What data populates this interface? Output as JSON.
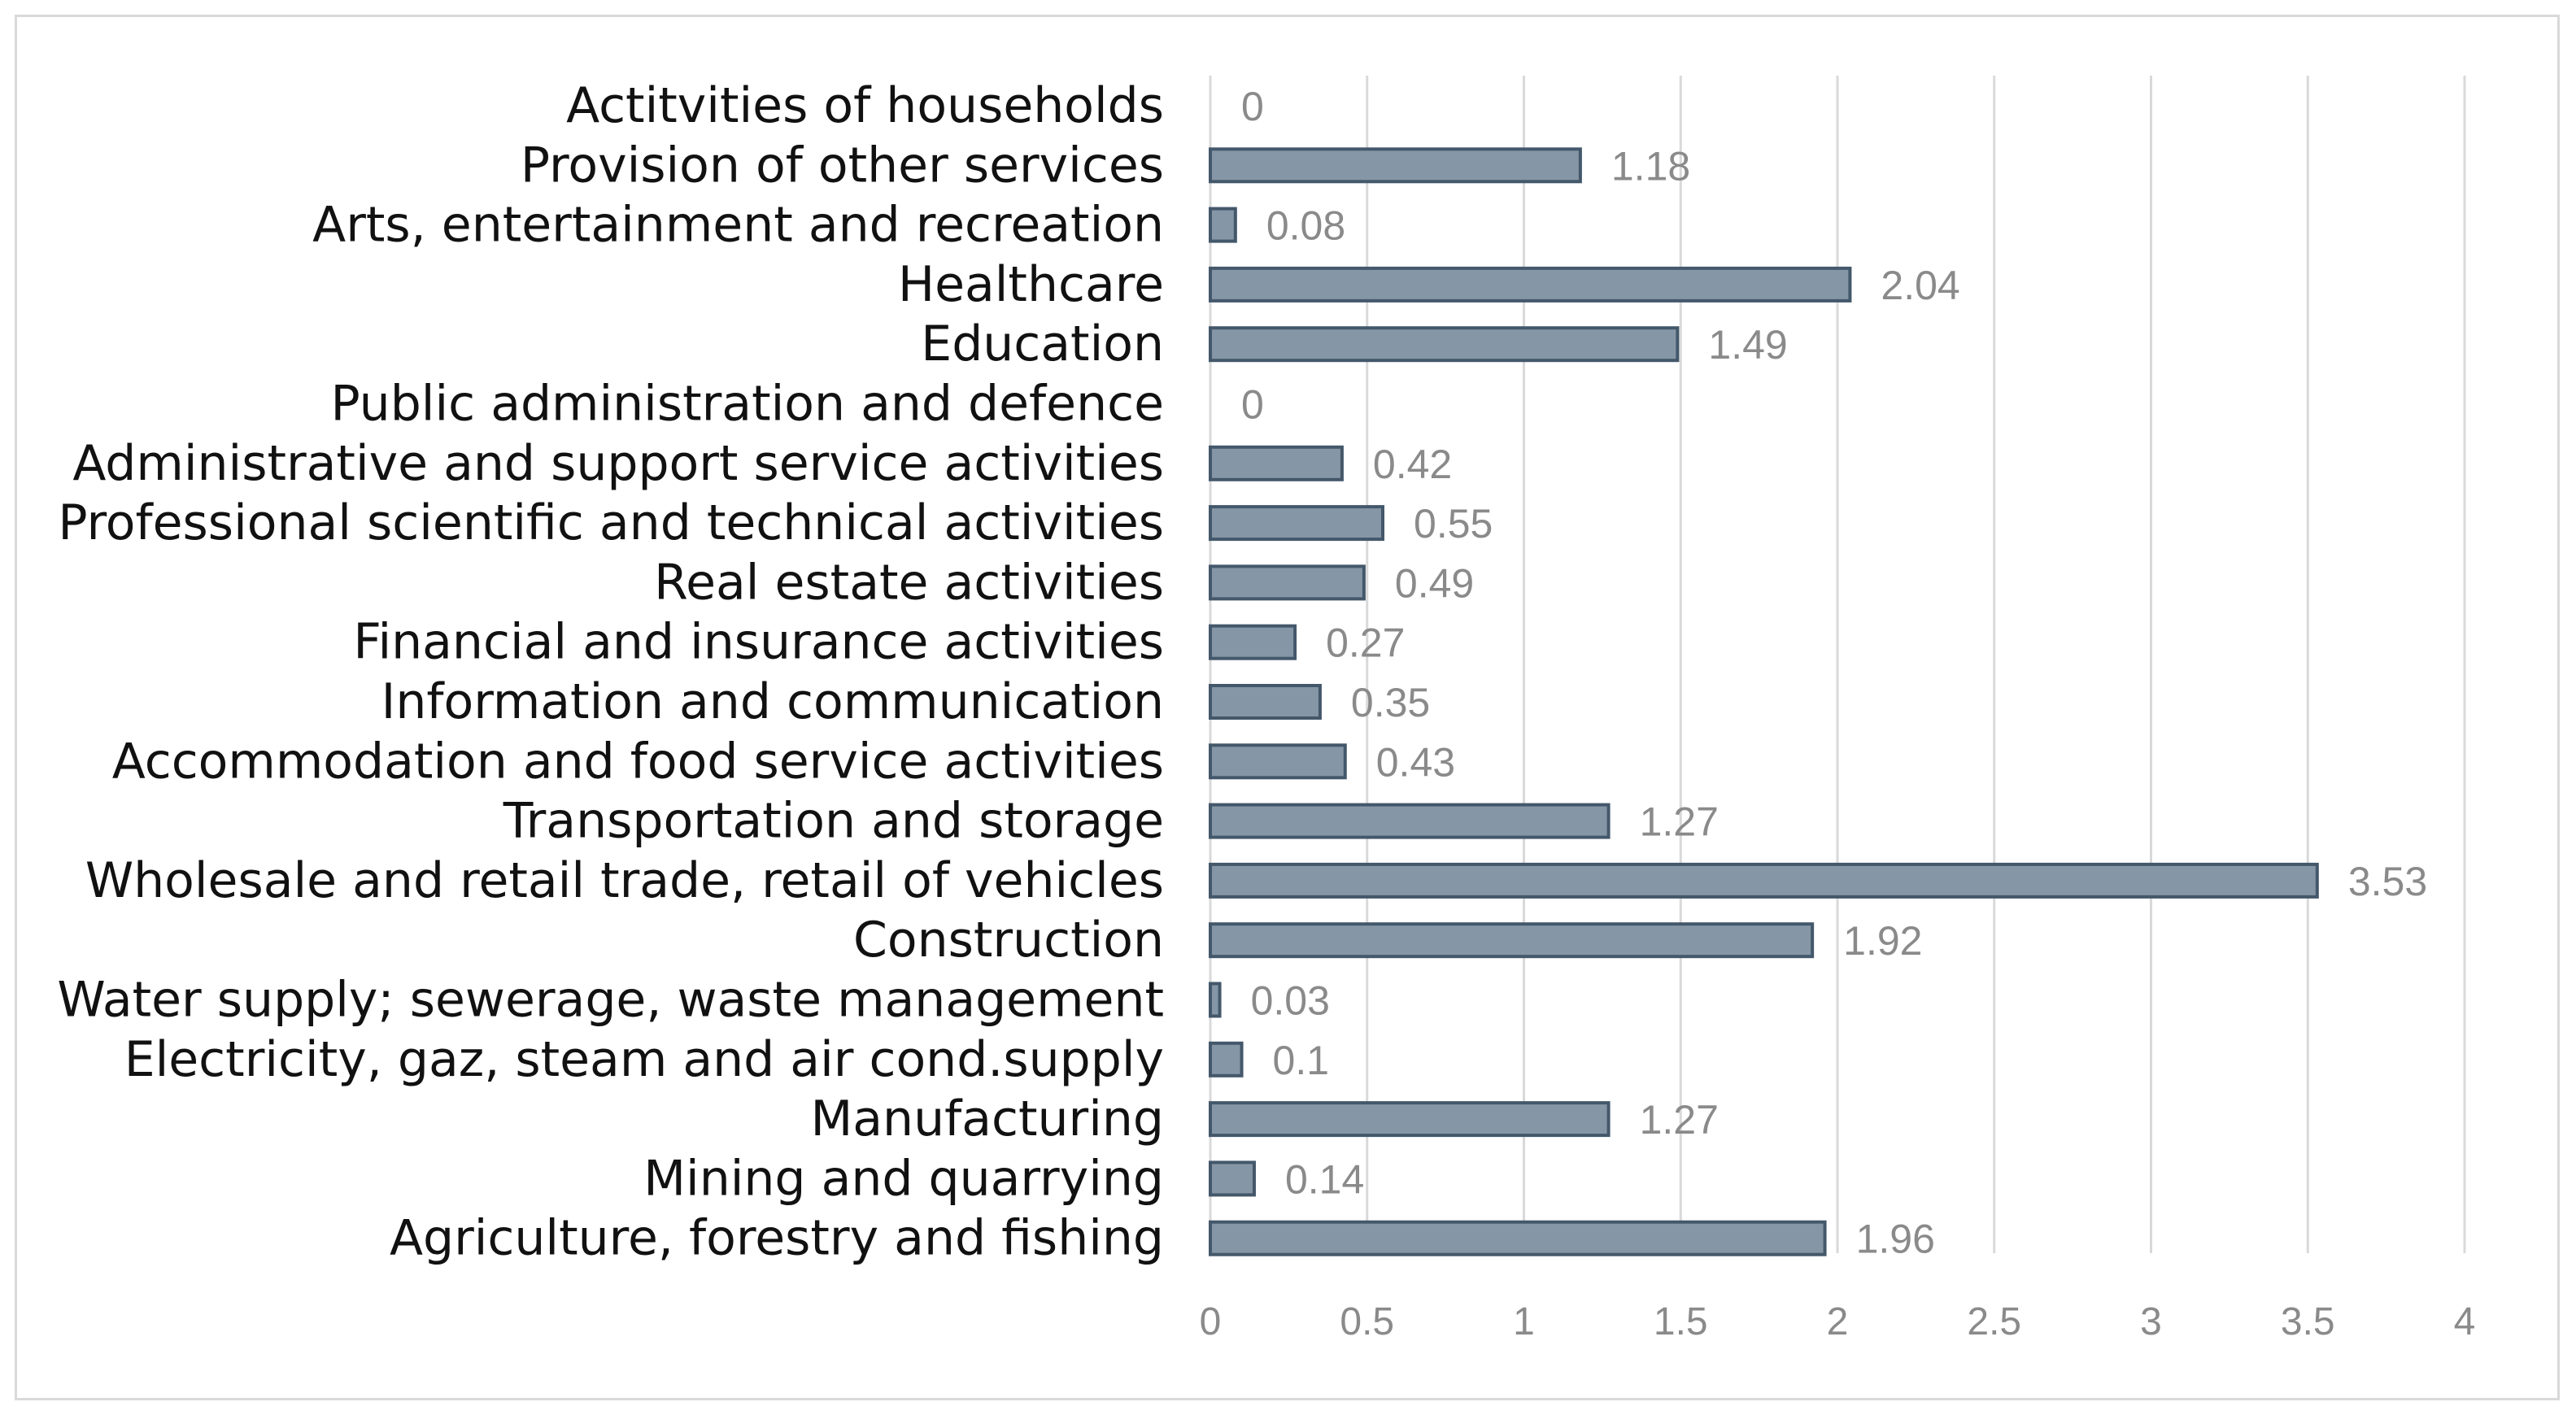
{
  "chart_data": {
    "type": "bar",
    "orientation": "horizontal",
    "categories": [
      "Actitvities of households",
      "Provision of other services",
      "Arts, entertainment and recreation",
      "Healthcare",
      "Education",
      "Public administration and defence",
      "Administrative and support service activities",
      "Professional scientific and technical activities",
      "Real estate activities",
      "Financial and insurance activities",
      "Information and communication",
      "Accommodation and food service activities",
      "Transportation and storage",
      "Wholesale and retail trade, retail of vehicles",
      "Construction",
      "Water supply; sewerage, waste management",
      "Electricity, gaz, steam and air cond.supply",
      "Manufacturing",
      "Mining and quarrying",
      "Agriculture, forestry and fishing"
    ],
    "values": [
      0,
      1.18,
      0.08,
      2.04,
      1.49,
      0,
      0.42,
      0.55,
      0.49,
      0.27,
      0.35,
      0.43,
      1.27,
      3.53,
      1.92,
      0.03,
      0.1,
      1.27,
      0.14,
      1.96
    ],
    "value_labels": [
      "0",
      "1.18",
      "0.08",
      "2.04",
      "1.49",
      "0",
      "0.42",
      "0.55",
      "0.49",
      "0.27",
      "0.35",
      "0.43",
      "1.27",
      "3.53",
      "1.92",
      "0.03",
      "0.1",
      "1.27",
      "0.14",
      "1.96"
    ],
    "xlim": [
      0,
      4
    ],
    "xticks": [
      0,
      0.5,
      1,
      1.5,
      2,
      2.5,
      3,
      3.5,
      4
    ],
    "xtick_labels": [
      "0",
      "0.5",
      "1",
      "1.5",
      "2",
      "2.5",
      "3",
      "3.5",
      "4"
    ],
    "title": "",
    "xlabel": "",
    "ylabel": "",
    "grid": true,
    "legend": "none",
    "colors": {
      "bar_fill": "#8597a6",
      "bar_stroke": "#44586b",
      "grid": "#d9d9d9",
      "label": "#111111",
      "value": "#8a8a8a"
    }
  }
}
